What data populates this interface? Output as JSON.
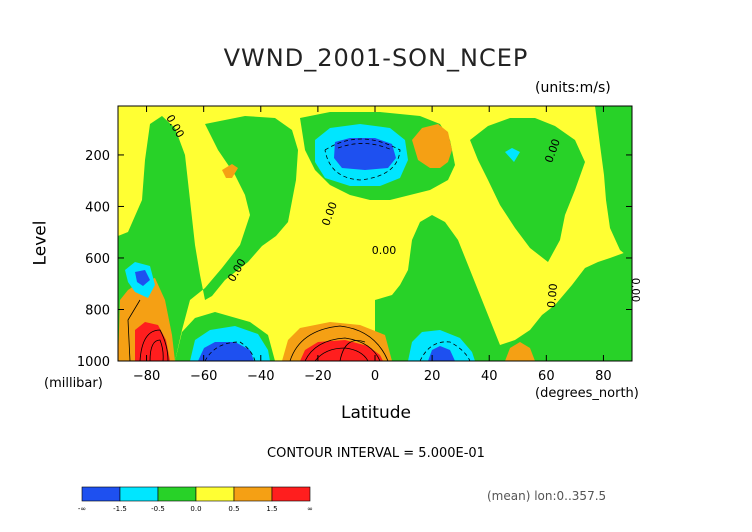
{
  "chart_data": {
    "type": "heatmap",
    "title": "VWND_2001-SON_NCEP",
    "units_label": "(units:m/s)",
    "xlabel": "Latitude",
    "xlabel_sub": "(degrees_north)",
    "ylabel": "Level",
    "ylabel_sub": "(millibar)",
    "xlim": [
      -90,
      90
    ],
    "ylim": [
      1000,
      10
    ],
    "x_ticks": [
      -80,
      -60,
      -40,
      -20,
      0,
      20,
      40,
      60,
      80
    ],
    "y_ticks": [
      200,
      400,
      600,
      800,
      1000
    ],
    "contour_interval_text": "CONTOUR INTERVAL = 5.000E-01",
    "contour_labels": [
      "0.00",
      "0.00",
      "0.00",
      "0.00",
      "0.00",
      "0.00",
      "0.00"
    ],
    "mean_text": "(mean) lon:0..357.5",
    "colorbar": {
      "labels": [
        "-∞",
        "-1.5",
        "-0.5",
        "0.0",
        "0.5",
        "1.5",
        "∞"
      ],
      "colors": [
        "#1e50f0",
        "#00e6ff",
        "#28d228",
        "#ffff33",
        "#f5a014",
        "#ff1e1e"
      ]
    },
    "features": [
      {
        "label": "strong negative",
        "lat": -12,
        "level": 170,
        "value": -1.5
      },
      {
        "label": "weak negative",
        "lat": -57,
        "level": 960,
        "value": -1.0
      },
      {
        "label": "weak negative",
        "lat": 20,
        "level": 960,
        "value": -0.7
      },
      {
        "label": "strong positive",
        "lat": -86,
        "level": 960,
        "value": 2.0
      },
      {
        "label": "strong positive",
        "lat": -12,
        "level": 960,
        "value": 2.0
      },
      {
        "label": "weak positive",
        "lat": 50,
        "level": 970,
        "value": 0.7
      },
      {
        "label": "weak positive",
        "lat": 22,
        "level": 180,
        "value": 0.6
      }
    ]
  }
}
